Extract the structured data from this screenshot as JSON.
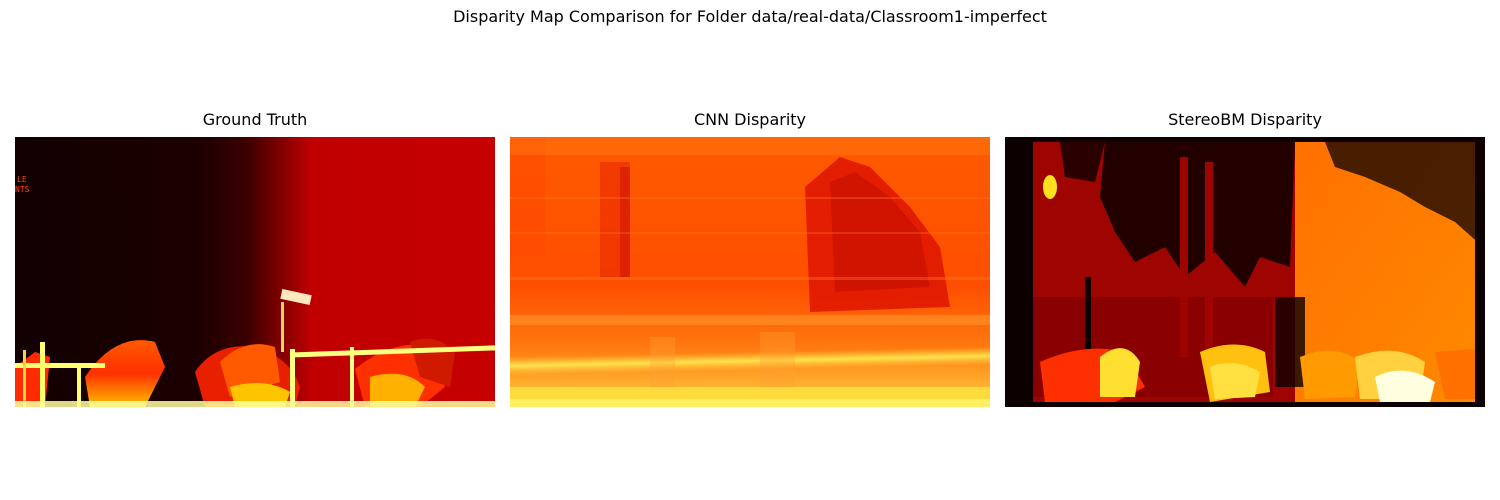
{
  "figure": {
    "suptitle": "Disparity Map Comparison for Folder data/real-data/Classroom1-imperfect"
  },
  "panels": [
    {
      "title": "Ground Truth",
      "image": "disparity map, hot colormap, dark left half and red right half with bright yellow chairs and railing"
    },
    {
      "title": "CNN Disparity",
      "image": "smooth orange-red disparity estimate with blurred yellow band near bottom"
    },
    {
      "title": "StereoBM Disparity",
      "image": "noisy block-matching disparity, black holes, dark red left region, orange right region, yellow chairs"
    }
  ],
  "colormap": {
    "name": "hot",
    "colors": [
      "#0b0000",
      "#8a0000",
      "#c80000",
      "#ff3c00",
      "#ff7d00",
      "#ffff20",
      "#ffffff"
    ]
  },
  "gt_text_fragments": [
    "LE",
    "NTS"
  ]
}
